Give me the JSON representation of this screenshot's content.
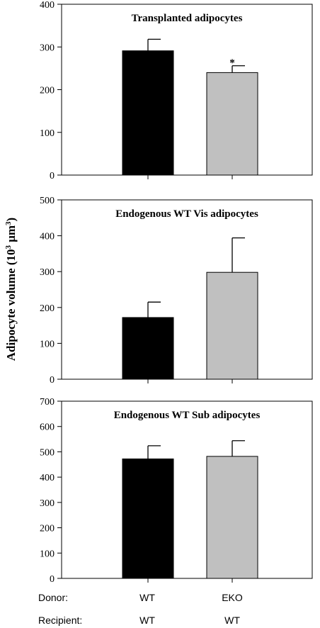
{
  "ylabel": {
    "prefix": "Adipocyte volume (10",
    "sup1": "3",
    "mid": " μm",
    "sup2": "3",
    "suffix": ")"
  },
  "footer": {
    "rows": [
      {
        "label": "Donor:",
        "values": [
          "WT",
          "EKO"
        ]
      },
      {
        "label": "Recipient:",
        "values": [
          "WT",
          "WT"
        ]
      }
    ]
  },
  "colors": {
    "bar_wt": "#000000",
    "bar_eko": "#c0c0c0"
  },
  "chart_data": [
    {
      "type": "bar",
      "title": "Transplanted adipocytes",
      "categories": [
        "WT / WT",
        "EKO / WT"
      ],
      "values": [
        291,
        240
      ],
      "errors": [
        27,
        16
      ],
      "ylim": [
        0,
        400
      ],
      "yticks": [
        0,
        100,
        200,
        300,
        400
      ],
      "annotations": [
        {
          "bar": 1,
          "text": "*"
        }
      ],
      "grid": false
    },
    {
      "type": "bar",
      "title": "Endogenous WT Vis adipocytes",
      "categories": [
        "WT / WT",
        "EKO / WT"
      ],
      "values": [
        172,
        298
      ],
      "errors": [
        43,
        96
      ],
      "ylim": [
        0,
        500
      ],
      "yticks": [
        0,
        100,
        200,
        300,
        400,
        500
      ],
      "annotations": [],
      "grid": false
    },
    {
      "type": "bar",
      "title": "Endogenous WT Sub adipocytes",
      "categories": [
        "WT / WT",
        "EKO / WT"
      ],
      "values": [
        472,
        482
      ],
      "errors": [
        52,
        62
      ],
      "ylim": [
        0,
        700
      ],
      "yticks": [
        0,
        100,
        200,
        300,
        400,
        500,
        600,
        700
      ],
      "annotations": [],
      "grid": false
    }
  ]
}
